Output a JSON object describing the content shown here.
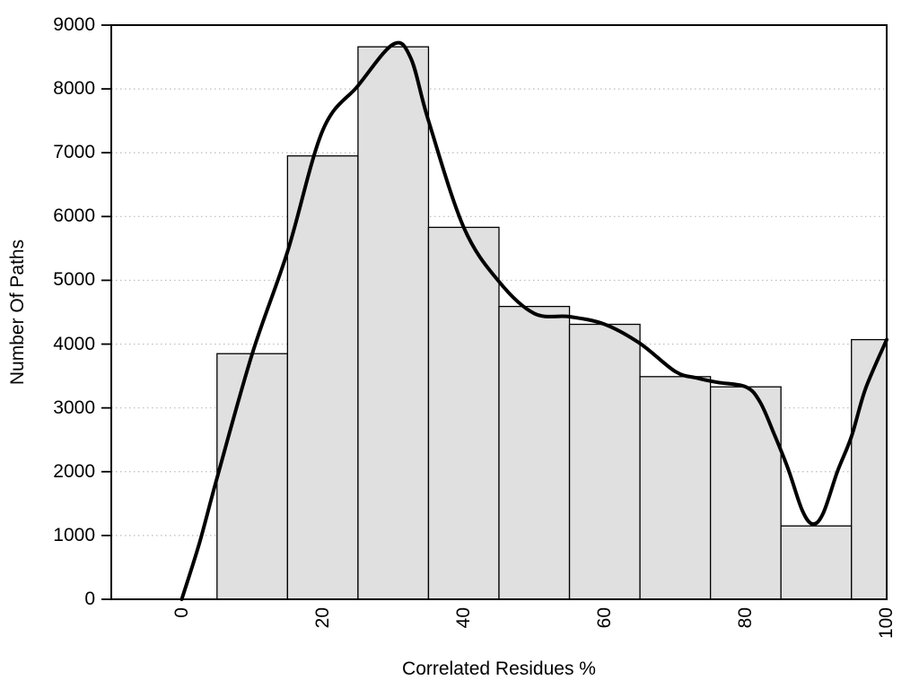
{
  "chart_data": {
    "type": "bar",
    "subtype": "histogram-with-smooth-curve",
    "title": "",
    "xlabel": "Correlated Residues %",
    "ylabel": "Number Of Paths",
    "xlim": [
      -10,
      100
    ],
    "ylim": [
      0,
      9000
    ],
    "x_ticks": [
      0,
      20,
      40,
      60,
      80,
      100
    ],
    "y_ticks": [
      0,
      1000,
      2000,
      3000,
      4000,
      5000,
      6000,
      7000,
      8000,
      9000
    ],
    "grid": "horizontal-dotted",
    "legend_position": "none",
    "bars": [
      {
        "x0": 5,
        "x1": 15,
        "value": 3850
      },
      {
        "x0": 15,
        "x1": 25,
        "value": 6950
      },
      {
        "x0": 25,
        "x1": 35,
        "value": 8660
      },
      {
        "x0": 35,
        "x1": 45,
        "value": 5830
      },
      {
        "x0": 45,
        "x1": 55,
        "value": 4590
      },
      {
        "x0": 55,
        "x1": 65,
        "value": 4310
      },
      {
        "x0": 65,
        "x1": 75,
        "value": 3490
      },
      {
        "x0": 75,
        "x1": 85,
        "value": 3330
      },
      {
        "x0": 85,
        "x1": 95,
        "value": 1150
      },
      {
        "x0": 95,
        "x1": 100,
        "value": 4070
      }
    ],
    "curve_points": [
      [
        0,
        0
      ],
      [
        2.5,
        880
      ],
      [
        5,
        1900
      ],
      [
        10,
        3850
      ],
      [
        15,
        5450
      ],
      [
        20,
        7350
      ],
      [
        25,
        8050
      ],
      [
        30,
        8700
      ],
      [
        32.5,
        8480
      ],
      [
        35,
        7500
      ],
      [
        40,
        5830
      ],
      [
        45,
        4980
      ],
      [
        50,
        4480
      ],
      [
        55,
        4430
      ],
      [
        60,
        4310
      ],
      [
        65,
        4010
      ],
      [
        70,
        3570
      ],
      [
        73,
        3470
      ],
      [
        76,
        3400
      ],
      [
        80,
        3330
      ],
      [
        82,
        3100
      ],
      [
        84,
        2600
      ],
      [
        86,
        2050
      ],
      [
        88,
        1400
      ],
      [
        89.5,
        1180
      ],
      [
        91,
        1350
      ],
      [
        93,
        2000
      ],
      [
        95,
        2550
      ],
      [
        97,
        3300
      ],
      [
        100,
        4070
      ]
    ],
    "colors": {
      "background": "#ffffff",
      "bar_fill": "#e0e0e0",
      "bar_border": "#000000",
      "curve": "#000000",
      "grid": "#bbbbbb",
      "axis": "#000000",
      "text": "#000000"
    }
  }
}
